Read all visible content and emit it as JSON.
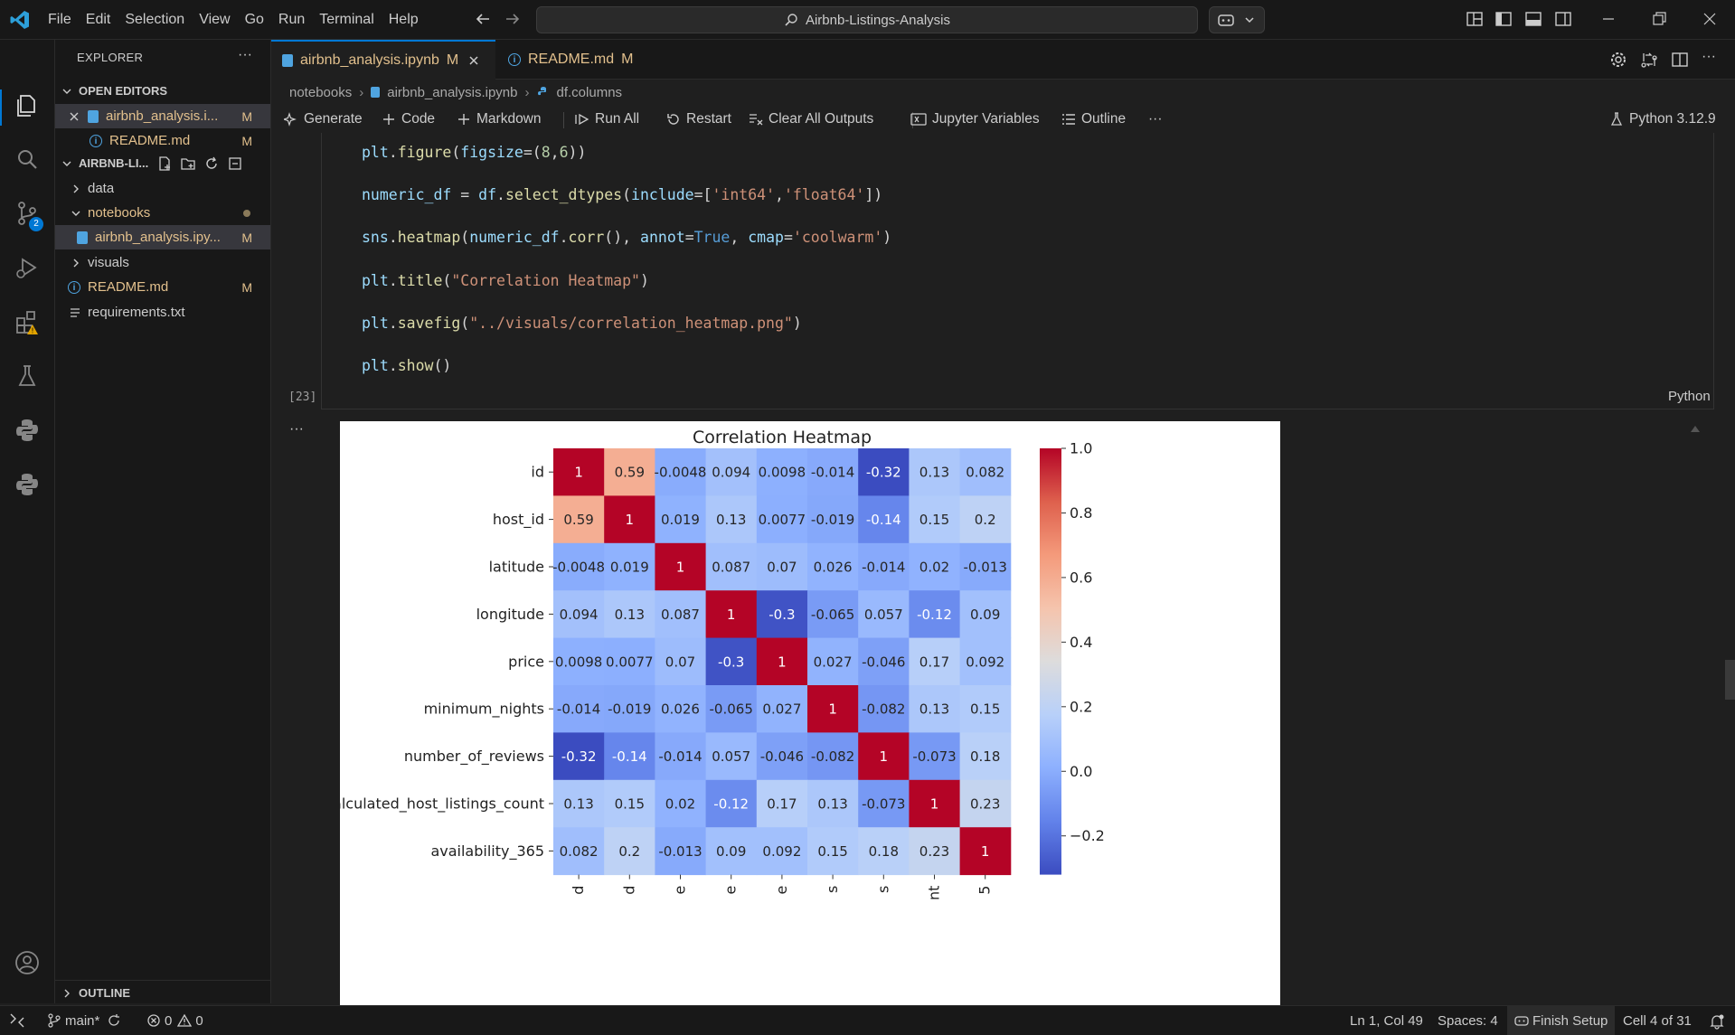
{
  "window": {
    "menu": [
      "File",
      "Edit",
      "Selection",
      "View",
      "Go",
      "Run",
      "Terminal",
      "Help"
    ],
    "search_text": "Airbnb-Listings-Analysis"
  },
  "explorer": {
    "title": "EXPLORER",
    "open_editors_label": "OPEN EDITORS",
    "open_editors": [
      {
        "name": "airbnb_analysis.i...",
        "status": "M"
      },
      {
        "name": "README.md",
        "status": "M"
      }
    ],
    "folder_label": "AIRBNB-LI...",
    "tree": [
      {
        "name": "data",
        "type": "folder"
      },
      {
        "name": "notebooks",
        "type": "folder"
      },
      {
        "name": "airbnb_analysis.ipy...",
        "status": "M"
      },
      {
        "name": "visuals",
        "type": "folder"
      },
      {
        "name": "README.md",
        "status": "M"
      },
      {
        "name": "requirements.txt"
      }
    ],
    "outline_label": "OUTLINE"
  },
  "tabs": [
    {
      "label": "airbnb_analysis.ipynb",
      "status": "M"
    },
    {
      "label": "README.md",
      "status": "M"
    }
  ],
  "breadcrumb": [
    "notebooks",
    "airbnb_analysis.ipynb",
    "df.columns"
  ],
  "toolbar": {
    "generate": "Generate",
    "code": "Code",
    "markdown": "Markdown",
    "run_all": "Run All",
    "restart": "Restart",
    "clear_outputs": "Clear All Outputs",
    "jupyter_variables": "Jupyter Variables",
    "outline": "Outline",
    "more": "···",
    "kernel": "Python 3.12.9"
  },
  "cell": {
    "exec_count": "[23]",
    "language": "Python",
    "output_dots": "···"
  },
  "chart_data": {
    "type": "heatmap",
    "title": "Correlation Heatmap",
    "rows": [
      "id",
      "host_id",
      "latitude",
      "longitude",
      "price",
      "minimum_nights",
      "number_of_reviews",
      "calculated_host_listings_count",
      "availability_365"
    ],
    "columns_visible_ticks": [
      "d",
      "d",
      "e",
      "e",
      "e",
      "s",
      "s",
      "nt",
      "5"
    ],
    "values": [
      [
        1,
        0.59,
        -0.0048,
        0.094,
        0.0098,
        -0.014,
        -0.32,
        0.13,
        0.082
      ],
      [
        0.59,
        1,
        0.019,
        0.13,
        0.0077,
        -0.019,
        -0.14,
        0.15,
        0.2
      ],
      [
        -0.0048,
        0.019,
        1,
        0.087,
        0.07,
        0.026,
        -0.014,
        0.02,
        -0.013
      ],
      [
        0.094,
        0.13,
        0.087,
        1,
        -0.3,
        -0.065,
        0.057,
        -0.12,
        0.09
      ],
      [
        0.0098,
        0.0077,
        0.07,
        -0.3,
        1,
        0.027,
        -0.046,
        0.17,
        0.092
      ],
      [
        -0.014,
        -0.019,
        0.026,
        -0.065,
        0.027,
        1,
        -0.082,
        0.13,
        0.15
      ],
      [
        -0.32,
        -0.14,
        -0.014,
        0.057,
        -0.046,
        -0.082,
        1,
        -0.073,
        0.18
      ],
      [
        0.13,
        0.15,
        0.02,
        -0.12,
        0.17,
        0.13,
        -0.073,
        1,
        0.23
      ],
      [
        0.082,
        0.2,
        -0.013,
        0.09,
        0.092,
        0.15,
        0.18,
        0.23,
        1
      ]
    ],
    "labels": [
      [
        "1",
        "0.59",
        "-0.0048",
        "0.094",
        "0.0098",
        "-0.014",
        "-0.32",
        "0.13",
        "0.082"
      ],
      [
        "0.59",
        "1",
        "0.019",
        "0.13",
        "0.0077",
        "-0.019",
        "-0.14",
        "0.15",
        "0.2"
      ],
      [
        "-0.0048",
        "0.019",
        "1",
        "0.087",
        "0.07",
        "0.026",
        "-0.014",
        "0.02",
        "-0.013"
      ],
      [
        "0.094",
        "0.13",
        "0.087",
        "1",
        "-0.3",
        "-0.065",
        "0.057",
        "-0.12",
        "0.09"
      ],
      [
        "0.0098",
        "0.0077",
        "0.07",
        "-0.3",
        "1",
        "0.027",
        "-0.046",
        "0.17",
        "0.092"
      ],
      [
        "-0.014",
        "-0.019",
        "0.026",
        "-0.065",
        "0.027",
        "1",
        "-0.082",
        "0.13",
        "0.15"
      ],
      [
        "-0.32",
        "-0.14",
        "-0.014",
        "0.057",
        "-0.046",
        "-0.082",
        "1",
        "-0.073",
        "0.18"
      ],
      [
        "0.13",
        "0.15",
        "0.02",
        "-0.12",
        "0.17",
        "0.13",
        "-0.073",
        "1",
        "0.23"
      ],
      [
        "0.082",
        "0.2",
        "-0.013",
        "0.09",
        "0.092",
        "0.15",
        "0.18",
        "0.23",
        "1"
      ]
    ],
    "colormap": "coolwarm",
    "colorbar_ticks": [
      "1.0",
      "0.8",
      "0.6",
      "0.4",
      "0.2",
      "0.0",
      "−0.2"
    ],
    "colorbar_range": [
      -0.32,
      1.0
    ]
  },
  "status": {
    "branch": "main*",
    "errors": "0",
    "warnings": "0",
    "position": "Ln 1, Col 49",
    "spaces": "Spaces: 4",
    "finish_setup": "Finish Setup",
    "cell_info": "Cell 4 of 31"
  },
  "colors": {
    "accent": "#0078d4",
    "modified": "#e2c08d",
    "background": "#1f1f1f"
  }
}
